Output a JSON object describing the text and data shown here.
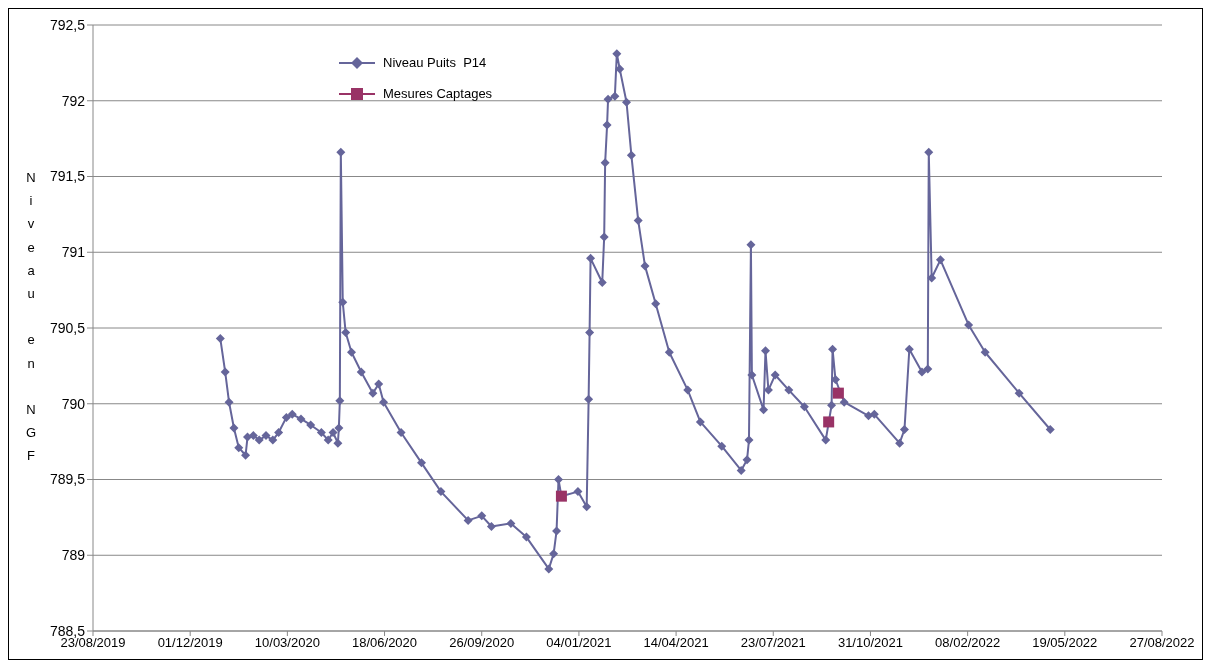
{
  "chart_data": {
    "type": "line",
    "ylabel": "Niveau en NGF",
    "xlim": [
      "2019-08-23",
      "2022-08-27"
    ],
    "xticks": [
      {
        "value": "2019-08-23",
        "label": "23/08/2019"
      },
      {
        "value": "2019-12-01",
        "label": "01/12/2019"
      },
      {
        "value": "2020-03-10",
        "label": "10/03/2020"
      },
      {
        "value": "2020-06-18",
        "label": "18/06/2020"
      },
      {
        "value": "2020-09-26",
        "label": "26/09/2020"
      },
      {
        "value": "2021-01-04",
        "label": "04/01/2021"
      },
      {
        "value": "2021-04-14",
        "label": "14/04/2021"
      },
      {
        "value": "2021-07-23",
        "label": "23/07/2021"
      },
      {
        "value": "2021-10-31",
        "label": "31/10/2021"
      },
      {
        "value": "2022-02-08",
        "label": "08/02/2022"
      },
      {
        "value": "2022-05-19",
        "label": "19/05/2022"
      },
      {
        "value": "2022-08-27",
        "label": "27/08/2022"
      }
    ],
    "ylim": [
      788.5,
      792.5
    ],
    "yticks": [
      {
        "value": 788.5,
        "label": "788,5"
      },
      789,
      {
        "value": 789.5,
        "label": "789,5"
      },
      790,
      {
        "value": 790.5,
        "label": "790,5"
      },
      791,
      {
        "value": 791.5,
        "label": "791,5"
      },
      792,
      {
        "value": 792.5,
        "label": "792,5"
      }
    ],
    "grid": "y",
    "legend": "top",
    "series": [
      {
        "name": "Niveau Puits  P14",
        "color": "#65659a",
        "marker": "diamond",
        "line_style": "solid",
        "x": [
          "2020-01-01",
          "2020-01-06",
          "2020-01-10",
          "2020-01-15",
          "2020-01-20",
          "2020-01-27",
          "2020-01-29",
          "2020-02-04",
          "2020-02-10",
          "2020-02-17",
          "2020-02-24",
          "2020-03-01",
          "2020-03-09",
          "2020-03-15",
          "2020-03-24",
          "2020-04-03",
          "2020-04-14",
          "2020-04-21",
          "2020-04-26",
          "2020-05-01",
          "2020-05-02",
          "2020-05-03",
          "2020-05-04",
          "2020-05-06",
          "2020-05-09",
          "2020-05-15",
          "2020-05-25",
          "2020-06-06",
          "2020-06-12",
          "2020-06-17",
          "2020-07-05",
          "2020-07-26",
          "2020-08-15",
          "2020-09-12",
          "2020-09-26",
          "2020-10-06",
          "2020-10-26",
          "2020-11-11",
          "2020-12-04",
          "2020-12-09",
          "2020-12-12",
          "2020-12-14",
          "2020-12-17",
          "2021-01-03",
          "2021-01-12",
          "2021-01-14",
          "2021-01-15",
          "2021-01-16",
          "2021-01-28",
          "2021-01-30",
          "2021-01-31",
          "2021-02-02",
          "2021-02-03",
          "2021-02-10",
          "2021-02-12",
          "2021-02-15",
          "2021-02-22",
          "2021-02-27",
          "2021-03-06",
          "2021-03-13",
          "2021-03-24",
          "2021-04-07",
          "2021-04-26",
          "2021-05-09",
          "2021-05-31",
          "2021-06-20",
          "2021-06-26",
          "2021-06-28",
          "2021-06-30",
          "2021-07-01",
          "2021-07-13",
          "2021-07-15",
          "2021-07-18",
          "2021-07-25",
          "2021-08-08",
          "2021-08-24",
          "2021-09-15",
          "2021-09-21",
          "2021-09-22",
          "2021-09-25",
          "2021-10-04",
          "2021-10-29",
          "2021-11-04",
          "2021-11-30",
          "2021-12-05",
          "2021-12-10",
          "2021-12-23",
          "2021-12-29",
          "2021-12-30",
          "2022-01-02",
          "2022-01-11",
          "2022-02-09",
          "2022-02-26",
          "2022-04-02",
          "2022-05-04"
        ],
        "values": [
          790.43,
          790.21,
          790.01,
          789.84,
          789.71,
          789.66,
          789.78,
          789.79,
          789.76,
          789.79,
          789.76,
          789.81,
          789.91,
          789.93,
          789.9,
          789.86,
          789.81,
          789.76,
          789.81,
          789.74,
          789.84,
          790.02,
          791.66,
          790.67,
          790.47,
          790.34,
          790.21,
          790.07,
          790.13,
          790.01,
          789.81,
          789.61,
          789.42,
          789.23,
          789.26,
          789.19,
          789.21,
          789.12,
          788.91,
          789.01,
          789.16,
          789.5,
          789.39,
          789.42,
          789.32,
          790.03,
          790.47,
          790.96,
          790.8,
          791.1,
          791.59,
          791.84,
          792.01,
          792.03,
          792.31,
          792.21,
          791.99,
          791.64,
          791.21,
          790.91,
          790.66,
          790.34,
          790.09,
          789.88,
          789.72,
          789.56,
          789.63,
          789.76,
          791.05,
          790.19,
          789.96,
          790.35,
          790.09,
          790.19,
          790.09,
          789.98,
          789.76,
          789.99,
          790.36,
          790.16,
          790.01,
          789.92,
          789.93,
          789.74,
          789.83,
          790.36,
          790.21,
          790.23,
          791.66,
          790.83,
          790.95,
          790.52,
          790.34,
          790.07,
          789.83
        ]
      },
      {
        "name": "Mesures Captages",
        "type": "scatter",
        "color": "#993366",
        "marker": "square",
        "x": [
          "2020-12-17",
          "2021-09-18",
          "2021-09-28"
        ],
        "values": [
          789.39,
          789.88,
          790.07
        ]
      }
    ]
  }
}
